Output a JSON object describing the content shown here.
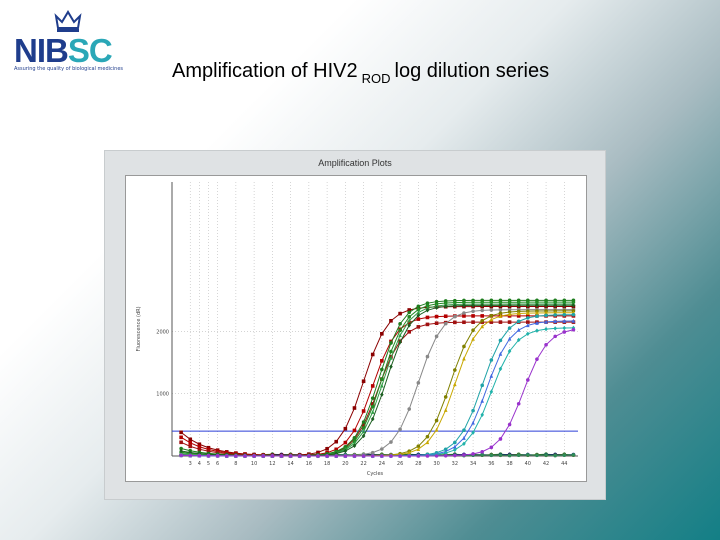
{
  "header": {
    "logo_text": "NIBSC",
    "logo_tagline": "Assuring the quality of biological medicines",
    "title_main": "Amplification of HIV2",
    "title_sub": "ROD",
    "title_end": "log dilution series"
  },
  "chart_data": {
    "type": "line",
    "title": "Amplification Plots",
    "xlabel": "Cycles",
    "ylabel": "Fluorescence (dR)",
    "x": [
      2,
      3,
      4,
      5,
      6,
      7,
      8,
      9,
      10,
      11,
      12,
      13,
      14,
      15,
      16,
      17,
      18,
      19,
      20,
      21,
      22,
      23,
      24,
      25,
      26,
      27,
      28,
      29,
      30,
      31,
      32,
      33,
      34,
      35,
      36,
      37,
      38,
      39,
      40,
      41,
      42,
      43,
      44,
      45
    ],
    "xlim": [
      1,
      45.5
    ],
    "xticks": [
      3,
      4,
      5,
      6,
      8,
      10,
      12,
      14,
      16,
      18,
      20,
      22,
      24,
      26,
      28,
      30,
      32,
      34,
      36,
      38,
      40,
      42,
      44
    ],
    "ylim": [
      0,
      4400
    ],
    "yticks": [
      1000,
      2000
    ],
    "threshold": 400,
    "grid": true,
    "series": [
      {
        "color": "#8b0000",
        "marker": "square",
        "ct": 22,
        "plateau": 2400,
        "start": 380
      },
      {
        "color": "#b40000",
        "marker": "square",
        "ct": 23,
        "plateau": 2250,
        "start": 300
      },
      {
        "color": "#a01010",
        "marker": "square",
        "ct": 23.6,
        "plateau": 2150,
        "start": 220
      },
      {
        "color": "#1e7d1e",
        "marker": "circle",
        "ct": 23.7,
        "plateau": 2500,
        "start": 120
      },
      {
        "color": "#228b22",
        "marker": "circle",
        "ct": 24,
        "plateau": 2470,
        "start": 60
      },
      {
        "color": "#2f9e44",
        "marker": "triangle",
        "ct": 24.2,
        "plateau": 2440,
        "start": 40
      },
      {
        "color": "#1b5e20",
        "marker": "diamond",
        "ct": 24.5,
        "plateau": 2420,
        "start": 80
      },
      {
        "color": "#888888",
        "marker": "circle",
        "ct": 28,
        "plateau": 2350,
        "start": 20
      },
      {
        "color": "#808000",
        "marker": "circle",
        "ct": 31.5,
        "plateau": 2330,
        "start": 10
      },
      {
        "color": "#c8a800",
        "marker": "triangle",
        "ct": 32,
        "plateau": 2300,
        "start": 10
      },
      {
        "color": "#1fa3a8",
        "marker": "circle",
        "ct": 35,
        "plateau": 2270,
        "start": 10
      },
      {
        "color": "#4169e1",
        "marker": "triangle",
        "ct": 35.5,
        "plateau": 2170,
        "start": 10
      },
      {
        "color": "#20b2aa",
        "marker": "diamond",
        "ct": 36,
        "plateau": 2060,
        "start": 10
      },
      {
        "color": "#9932cc",
        "marker": "circle",
        "ct": 39.5,
        "plateau": 2060,
        "start": 10
      }
    ],
    "baselines": [
      {
        "color": "#1e7d1e",
        "level": 18
      },
      {
        "color": "#000080",
        "level": 14
      },
      {
        "color": "#556b2f",
        "level": 10
      },
      {
        "color": "#2e8b57",
        "level": 7
      }
    ]
  }
}
